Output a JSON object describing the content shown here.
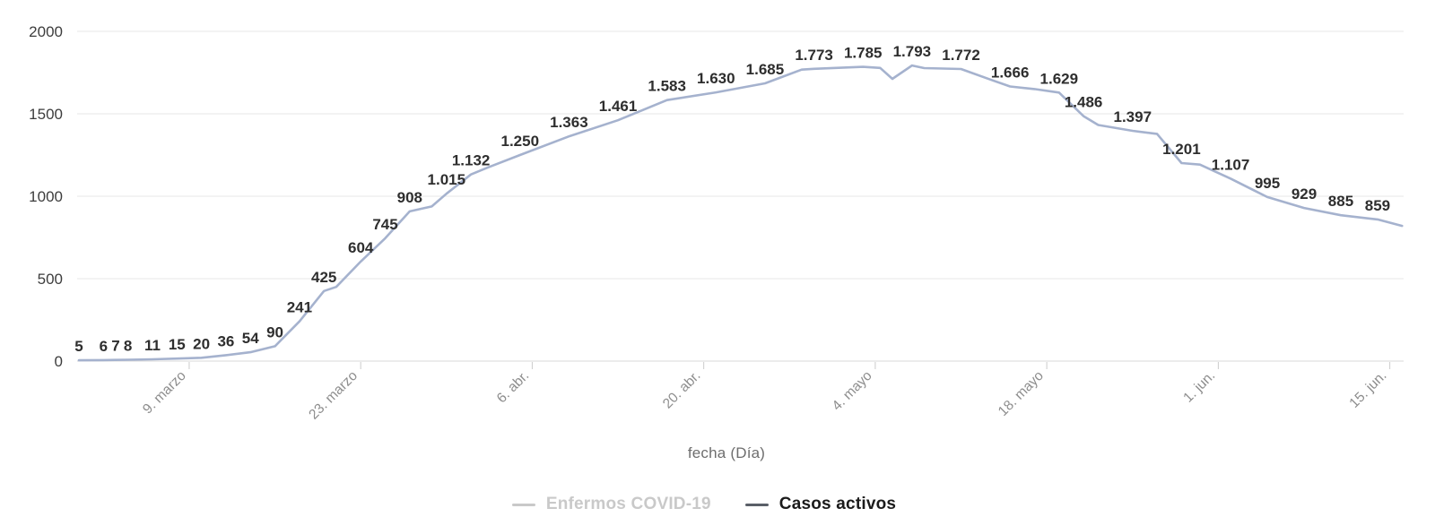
{
  "chart_data": {
    "type": "line",
    "title": "",
    "xlabel": "fecha (Día)",
    "ylabel": "",
    "grid": true,
    "legend_position": "bottom",
    "x_axis": {
      "title": "fecha (Día)",
      "ticks": [
        {
          "day": 9,
          "label": "9. marzo"
        },
        {
          "day": 23,
          "label": "23. marzo"
        },
        {
          "day": 37,
          "label": "6. abr."
        },
        {
          "day": 51,
          "label": "20. abr."
        },
        {
          "day": 65,
          "label": "4. mayo"
        },
        {
          "day": 79,
          "label": "18. mayo"
        },
        {
          "day": 93,
          "label": "1. jun."
        },
        {
          "day": 107,
          "label": "15. jun."
        }
      ]
    },
    "y_axis": {
      "ticks": [
        0,
        500,
        1000,
        1500,
        2000
      ],
      "range": [
        0,
        2000
      ]
    },
    "legend": [
      {
        "label": "Enfermos COVID-19",
        "state": "hidden"
      },
      {
        "label": "Casos activos",
        "state": "active"
      }
    ],
    "series": [
      {
        "name": "Casos activos",
        "points": [
          {
            "d": 0,
            "v": 5,
            "label": "5"
          },
          {
            "d": 2,
            "v": 6,
            "label": "6"
          },
          {
            "d": 3,
            "v": 7,
            "label": "7"
          },
          {
            "d": 4,
            "v": 8,
            "label": "8"
          },
          {
            "d": 6,
            "v": 11,
            "label": "11"
          },
          {
            "d": 8,
            "v": 15,
            "label": "15"
          },
          {
            "d": 10,
            "v": 20,
            "label": "20"
          },
          {
            "d": 12,
            "v": 36,
            "label": "36"
          },
          {
            "d": 14,
            "v": 54,
            "label": "54"
          },
          {
            "d": 16,
            "v": 90,
            "label": "90"
          },
          {
            "d": 18,
            "v": 241,
            "label": "241"
          },
          {
            "d": 20,
            "v": 425,
            "label": "425"
          },
          {
            "d": 21,
            "v": 450
          },
          {
            "d": 23,
            "v": 604,
            "label": "604"
          },
          {
            "d": 25,
            "v": 745,
            "label": "745"
          },
          {
            "d": 27,
            "v": 908,
            "label": "908"
          },
          {
            "d": 28.8,
            "v": 938
          },
          {
            "d": 30,
            "v": 1015,
            "label": "1.015"
          },
          {
            "d": 32,
            "v": 1132,
            "label": "1.132"
          },
          {
            "d": 33.4,
            "v": 1175
          },
          {
            "d": 36,
            "v": 1250,
            "label": "1.250"
          },
          {
            "d": 40,
            "v": 1363,
            "label": "1.363"
          },
          {
            "d": 44,
            "v": 1461,
            "label": "1.461"
          },
          {
            "d": 48,
            "v": 1583,
            "label": "1.583"
          },
          {
            "d": 52,
            "v": 1630,
            "label": "1.630"
          },
          {
            "d": 56,
            "v": 1685,
            "label": "1.685"
          },
          {
            "d": 59,
            "v": 1768
          },
          {
            "d": 60,
            "v": 1773,
            "label": "1.773"
          },
          {
            "d": 64,
            "v": 1785,
            "label": "1.785"
          },
          {
            "d": 65.4,
            "v": 1778
          },
          {
            "d": 66.4,
            "v": 1712
          },
          {
            "d": 68,
            "v": 1793,
            "label": "1.793"
          },
          {
            "d": 69,
            "v": 1777
          },
          {
            "d": 72,
            "v": 1772,
            "label": "1.772"
          },
          {
            "d": 74.5,
            "v": 1705
          },
          {
            "d": 76,
            "v": 1666,
            "label": "1.666"
          },
          {
            "d": 78,
            "v": 1650
          },
          {
            "d": 80,
            "v": 1629,
            "label": "1.629"
          },
          {
            "d": 82,
            "v": 1486,
            "label": "1.486"
          },
          {
            "d": 83.2,
            "v": 1432
          },
          {
            "d": 86,
            "v": 1397,
            "label": "1.397"
          },
          {
            "d": 88,
            "v": 1378
          },
          {
            "d": 90,
            "v": 1201,
            "label": "1.201"
          },
          {
            "d": 91.5,
            "v": 1192
          },
          {
            "d": 94,
            "v": 1107,
            "label": "1.107"
          },
          {
            "d": 97,
            "v": 995,
            "label": "995"
          },
          {
            "d": 100,
            "v": 929,
            "label": "929"
          },
          {
            "d": 103,
            "v": 885,
            "label": "885"
          },
          {
            "d": 106,
            "v": 859,
            "label": "859"
          },
          {
            "d": 108,
            "v": 820
          }
        ]
      }
    ]
  },
  "colors": {
    "background": "#ffffff",
    "series_line": "#a5b2ce",
    "data_label": "#2e2e2e",
    "grid_line": "#e7e7e7",
    "axis_line": "#d9d9d9",
    "tick_mark": "#cccccc",
    "y_axis_label": "#3d3d3d",
    "x_axis_label": "#8d8d8d",
    "axis_title": "#6e6e6e",
    "legend_inactive": "#c9c9c9",
    "legend_active_text": "#1b1b1b",
    "legend_active_marker": "#5a5f68"
  }
}
